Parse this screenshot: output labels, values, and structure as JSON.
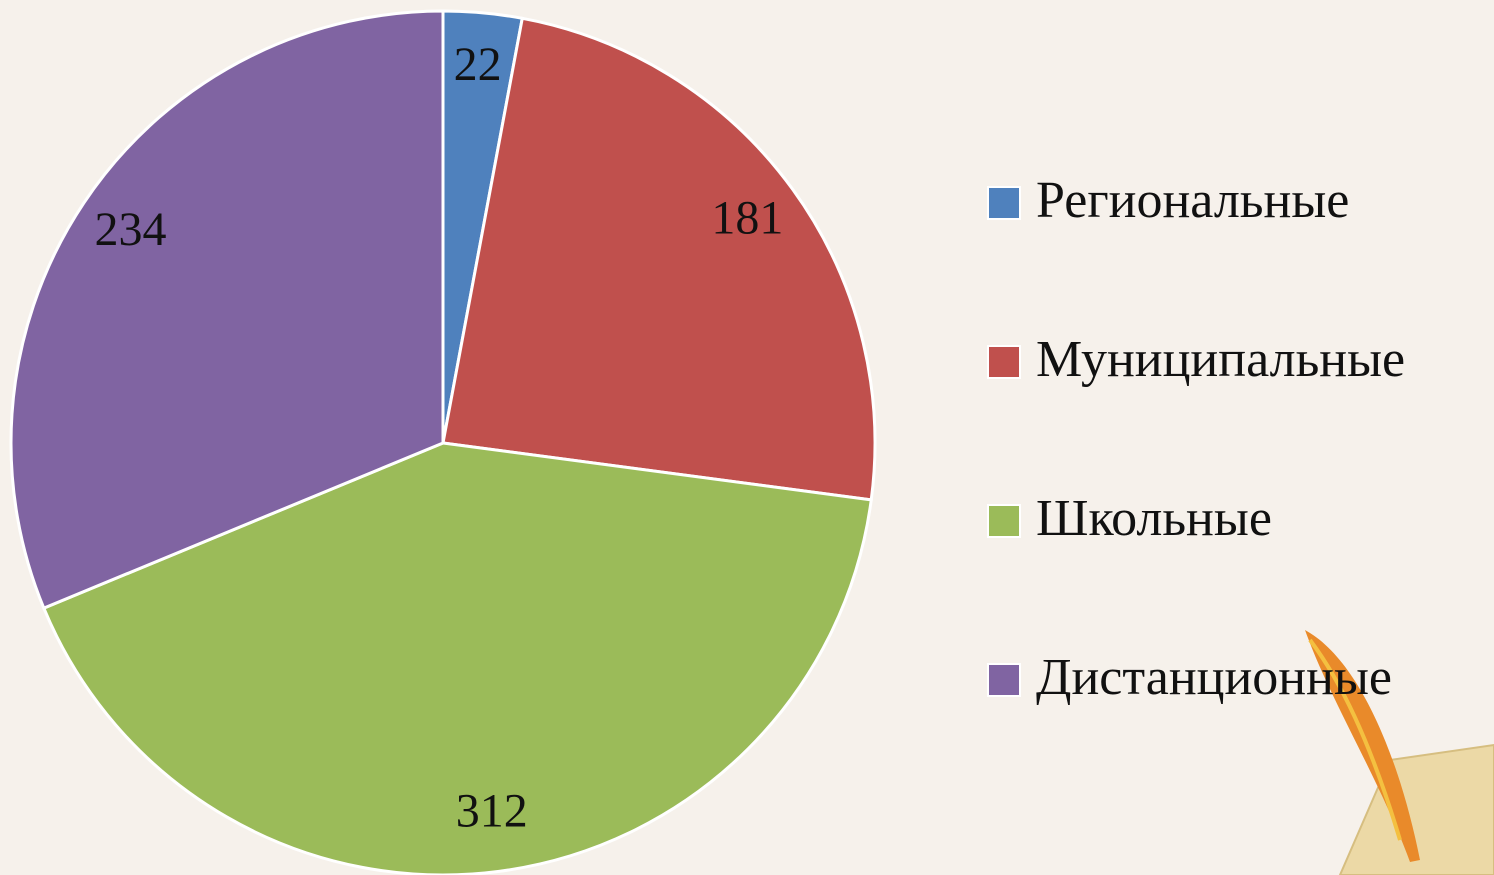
{
  "chart_data": {
    "type": "pie",
    "categories": [
      "Региональные",
      "Муниципальные",
      "Школьные",
      "Дистанционные"
    ],
    "values": [
      22,
      181,
      312,
      234
    ],
    "colors": [
      "#4f81bd",
      "#c0504d",
      "#9bbb59",
      "#8064a2"
    ],
    "legend": "right"
  }
}
